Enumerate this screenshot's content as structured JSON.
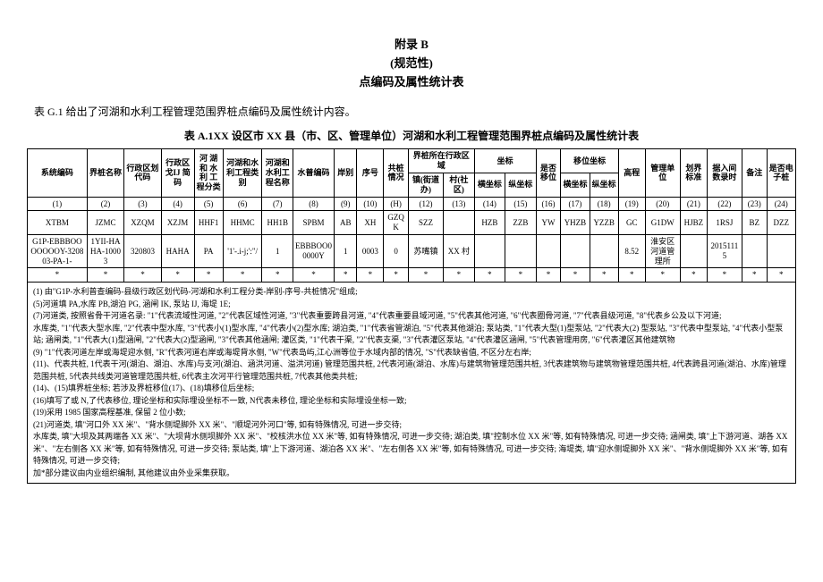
{
  "header": {
    "line1": "附录 B",
    "line2": "(规范性)",
    "line3": "点编码及属性统计表"
  },
  "intro": "表 G.1 给出了河湖和水利工程管理范围界桩点编码及属性统计内容。",
  "table_title": "表 A.1XX 设区市 XX 县（市、区、管理单位）河湖和水利工程管理范围界桩点编码及属性统计表",
  "headers": {
    "h1": "系统编码",
    "h2": "界桩名称",
    "h3": "行政区划代码",
    "h4": "行政区戈IJ 简码",
    "h5": "河 湖 和 水 利 工 程分类",
    "h6": "河湖和水利工程类别",
    "h7": "河湖和水利工程名称",
    "h8": "水普编码",
    "h9": "岸别",
    "h10": "序号",
    "h11": "共桩情况",
    "h12_parent": "界桩所在行政区域",
    "h12a": "镇(街道办)",
    "h12b": "村(社区)",
    "h13_parent": "坐标",
    "h13a": "横坐标",
    "h13b": "纵坐标",
    "h14": "是否移位",
    "h15_parent": "移位坐标",
    "h15a": "横坐标",
    "h15b": "纵坐标",
    "h16": "高程",
    "h17": "管理单位",
    "h18": "划界标准",
    "h19": "据入间数录时",
    "h20": "备注",
    "h21": "是否电子桩"
  },
  "index_row": [
    "(1)",
    "(2)",
    "(3)",
    "(4)",
    "(5)",
    "(6)",
    "(7)",
    "(8)",
    "(9)",
    "(10)",
    "(H)",
    "(12)",
    "(13)",
    "(14)",
    "(15)",
    "(16)",
    "(17)",
    "(18)",
    "(19)",
    "(20)",
    "(21)",
    "(22)",
    "(23)",
    "(24)"
  ],
  "code_row": [
    "XTBM",
    "JZMC",
    "XZQM",
    "XZJM",
    "HHF1",
    "HHMC",
    "HH1B",
    "SPBM",
    "AB",
    "XH",
    "GZQK",
    "SZZ",
    "",
    "HZB",
    "ZZB",
    "YW",
    "YHZB",
    "YZZB",
    "GC",
    "G1DW",
    "HJBZ",
    "1RSJ",
    "BZ",
    "DZZ"
  ],
  "data_row": [
    "G1P-EBBBOOOOOOOY-320803-PA-1-",
    "1YII-HAHA-10003",
    "320803",
    "HAHA",
    "PA",
    "'1'-.i-j;':\"/",
    "1",
    "EBBBOO00000Y",
    "1",
    "0003",
    "0",
    "苏嘴镇",
    "XX 村",
    "",
    "",
    "",
    "",
    "",
    "8.52",
    "淮安区河道管理所",
    "",
    "20151115",
    "",
    ""
  ],
  "star_row": [
    "*",
    "*",
    "*",
    "*",
    "*",
    "*",
    "*",
    "*",
    "*",
    "*",
    "*",
    "*",
    "*",
    "*",
    "*",
    "*",
    "*",
    "*",
    "*",
    "*",
    "*",
    "*",
    "*",
    "*"
  ],
  "notes": "(1) 由\"G1P-水利普查编码-县级行政区划代码-河湖和水利工程分类-岸别-序号-共桩情况\"组成;\n(5)河道填 PA,水库 PB,湖泊 PG, 涵闸 IK, 泵站 IJ, 海堤 1E;\n(7)河道类, 按照省骨干河道名录: \"1\"代表流域性河道, \"2\"代表区域性河道, \"3\"代表重要跨县河道, \"4\"代表重要县域河道, \"5\"代表其他河道, \"6\"代表圈骨河道, \"7\"代表县级河道, \"8\"代表乡公及以下河道;\n水库类, \"1\"代表大型水库, \"2\"代表中型水库, \"3\"代表小(1)型水库, \"4\"代表小(2)型水库; 湖泊类, \"1\"代表省管湖泊, \"5\"代表其他湖泊; 泵站类, \"1\"代表大型(1)型泵站, \"2\"代表大(2) 型泵站, \"3\"代表中型泵站, \"4\"代表小型泵站; 涵闸类, \"1\"代表大(1)型涵闸, \"2\"代表大(2)型涵闸, \"3\"代表其他涵闸; 灌区类, \"1\"代表干渠, \"2\"代表支渠, \"3\"代表灌区泵站, \"4\"代表灌区涵闸, \"5\"代表管理用房, \"6\"代表灌区其他建筑物\n(9) \"1\"代表河道左岸或海堤迎水侧, \"R\"代表河道右岸或海堤背水侧, \"W\"代表岛屿,江心洲等位于水域内部的情况, \"S\"代表缺省值, 不区分左右岸;\n(11)、代表共桩, 1代表干河(湖泊、湖泊、水库)与支河(湖泊、涵洪河道、溢洪河道) 管理范围共桩, 2代表河道(湖泊、水库)与建筑物管理范围共桩, 3代表建筑物与建筑物管理范围共桩, 4代表跨县河道(湖泊、水库)管理范围共桩, 5代表共线类河道管理范围共桩, 6代表主次河平行管理范围共桩, 7代表其他类共桩;\n(14)、(15)填界桩坐标; 若涉及界桩移位(17)、(18)填移位后坐标;\n(16)填写了或 N,了代表移位, 理论坐标和实际埋设坐标不一致, N代表未移位, 理论坐标和实际埋设坐标一致;\n(19)采用 1985 国家高程基准, 保留 2 位小数;\n(21)河道类, 填\"河口外 XX 米\"、\"背水侧堤脚外 XX 米\"、\"顺堤河外河口\"等, 如有特殊情况, 可进一步交待;\n水库类, 填\"大坝及其两端各 XX 米\"、\"大坝背水侧坝脚外 XX 米\"、\"校核洪水位 XX 米\"等, 如有特殊情况, 可进一步交待; 湖泊类, 填\"控制水位 XX 米\"等, 如有特殊情况, 可进一步交待; 涵闸类, 填\"上下游河道、湖各 XX 米\"、\"左右侧各 XX 米\"等, 如有特殊情况, 可进一步交待; 泵站类, 填\"上下游河道、湖泊各 XX 米\"、\"左右侧各 XX 米\"等, 如有特殊情况, 可进一步交待; 海堤类, 填\"迎水侧堤脚外 XX 米\"、\"背水侧堤脚外 XX 米\"等, 如有特殊情况, 可进一步交待;\n加*部分建议由内业组织编制, 其他建议由外业采集获取。"
}
